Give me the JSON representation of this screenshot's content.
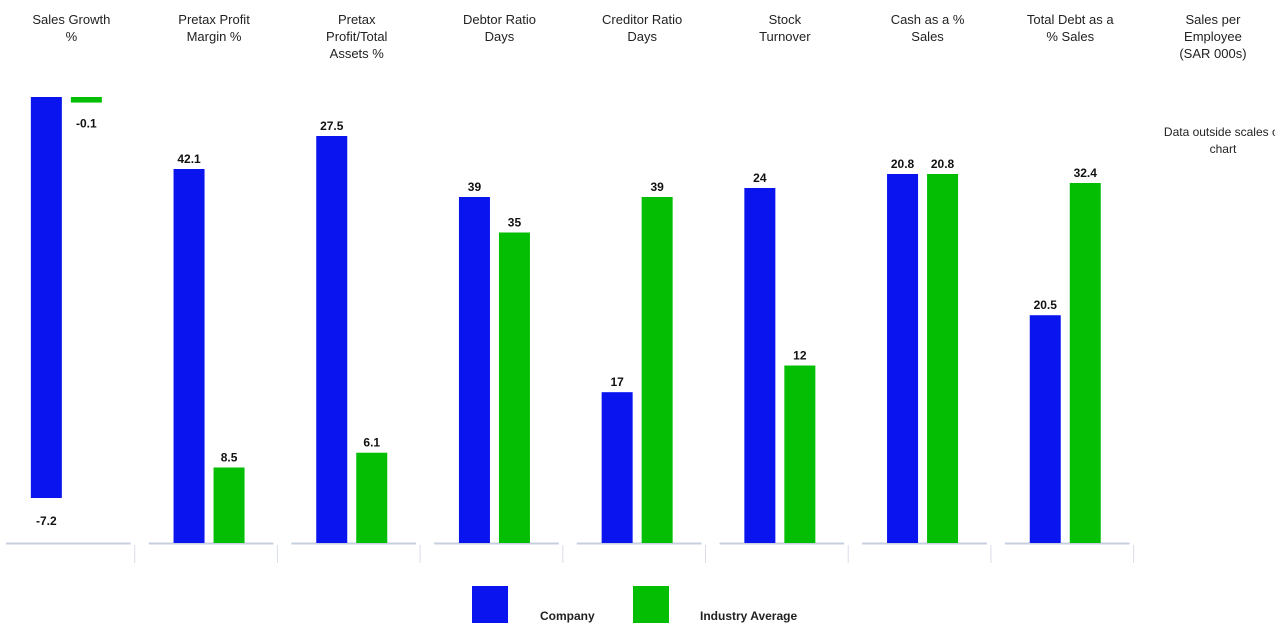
{
  "chart_data": {
    "type": "bar",
    "colors": {
      "company": "#0a14ee",
      "industry": "#04be04"
    },
    "legend": {
      "position": "bottom",
      "company_label": "Company",
      "industry_label": "Industry Average"
    },
    "panels": [
      {
        "title": [
          "Sales Growth",
          "%"
        ],
        "company": -7.2,
        "industry": -0.1
      },
      {
        "title": [
          "Pretax Profit",
          "Margin %"
        ],
        "company": 42.1,
        "industry": 8.5
      },
      {
        "title": [
          "Pretax",
          "Profit/Total",
          "Assets %"
        ],
        "company": 27.5,
        "industry": 6.1
      },
      {
        "title": [
          "Debtor Ratio",
          "Days"
        ],
        "company": 39,
        "industry": 35
      },
      {
        "title": [
          "Creditor Ratio",
          "Days"
        ],
        "company": 17,
        "industry": 39
      },
      {
        "title": [
          "Stock",
          "Turnover"
        ],
        "company": 24,
        "industry": 12
      },
      {
        "title": [
          "Cash as a %",
          "Sales"
        ],
        "company": 20.8,
        "industry": 20.8
      },
      {
        "title": [
          "Total Debt as a",
          "% Sales"
        ],
        "company": 20.5,
        "industry": 32.4
      },
      {
        "title": [
          "Sales per",
          "Employee",
          "(SAR 000s)"
        ],
        "note": [
          "Data outside scales of",
          "chart"
        ]
      }
    ]
  }
}
